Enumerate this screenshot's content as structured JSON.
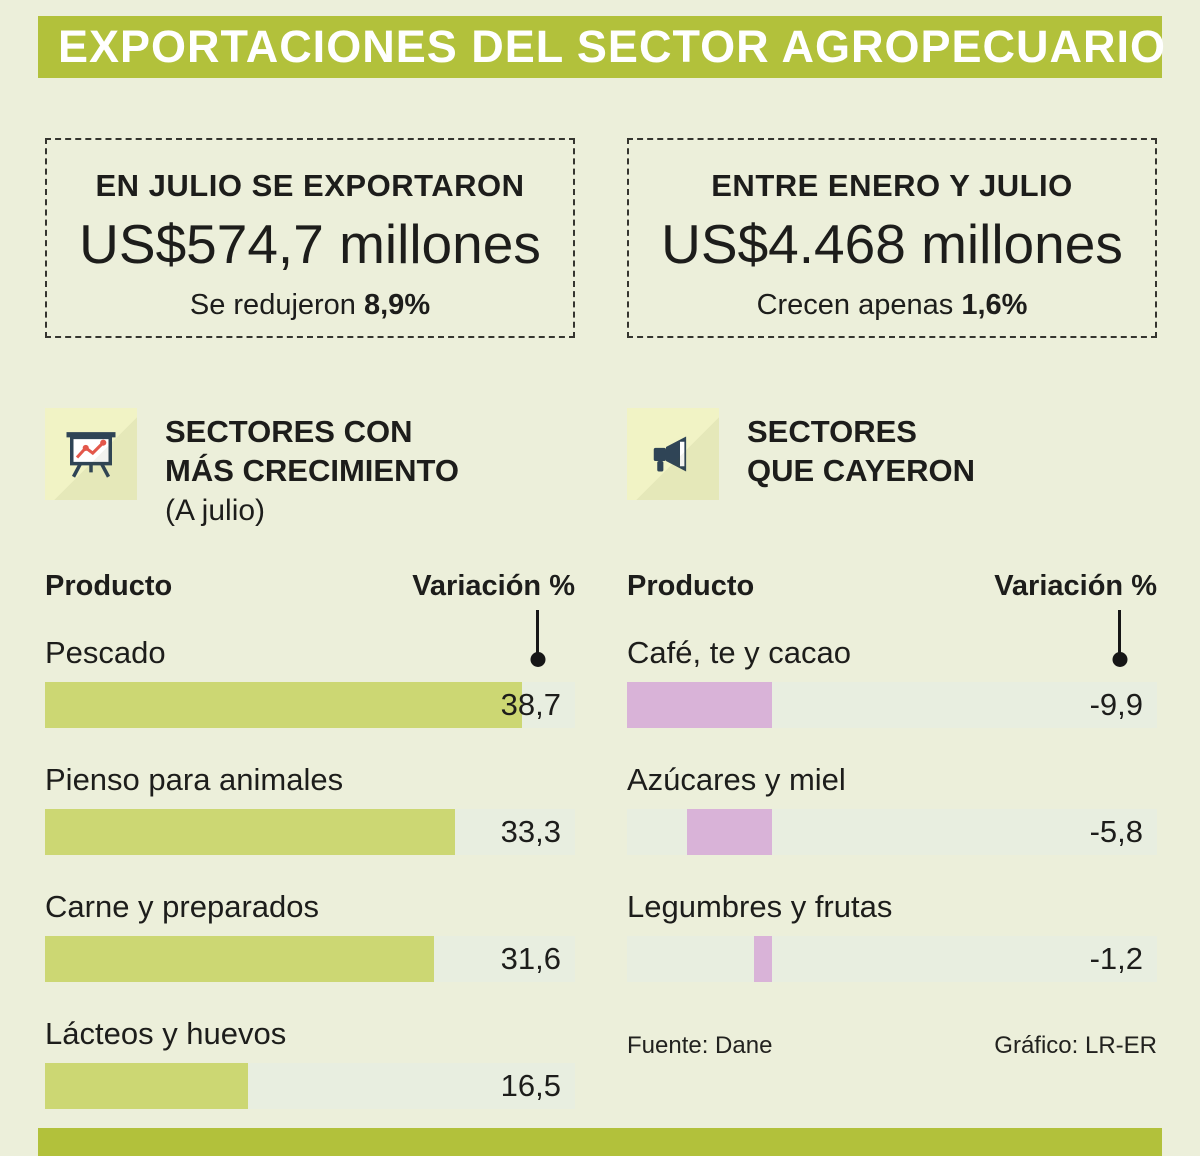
{
  "page": {
    "title": "EXPORTACIONES DEL SECTOR AGROPECUARIO",
    "source": "Fuente: Dane",
    "credit": "Gráfico: LR-ER"
  },
  "colors": {
    "banner": "#b2c13b",
    "page_bg": "#ecefda",
    "track": "#e8eee0",
    "icon_bg": "#f1f3c5",
    "growth_bar": "#ccd773",
    "decline_bar": "#d9b3d8"
  },
  "summary_boxes": [
    {
      "heading": "EN JULIO SE EXPORTARON",
      "amount": "US$574,7 millones",
      "note_prefix": "Se redujeron ",
      "note_value": "8,9%"
    },
    {
      "heading": "ENTRE ENERO Y JULIO",
      "amount": "US$4.468 millones",
      "note_prefix": "Crecen apenas ",
      "note_value": "1,6%"
    }
  ],
  "chart_data": [
    {
      "type": "bar",
      "title": "SECTORES CON MÁS CRECIMIENTO",
      "title_lines": [
        "SECTORES CON",
        "MÁS CRECIMIENTO"
      ],
      "subtitle": "(A julio)",
      "col_product": "Producto",
      "col_variation": "Variación %",
      "categories": [
        "Pescado",
        "Pienso para animales",
        "Carne y preparados",
        "Lácteos y huevos"
      ],
      "values": [
        38.7,
        33.3,
        31.6,
        16.5
      ],
      "value_labels": [
        "38,7",
        "33,3",
        "31,6",
        "16,5"
      ],
      "xlim": [
        0,
        43
      ],
      "bar_color": "#ccd773",
      "unit": "% variación"
    },
    {
      "type": "bar",
      "title": "SECTORES QUE CAYERON",
      "title_lines": [
        "SECTORES",
        "QUE CAYERON"
      ],
      "subtitle": "",
      "col_product": "Producto",
      "col_variation": "Variación %",
      "categories": [
        "Café, te y cacao",
        "Azúcares y miel",
        "Legumbres y frutas"
      ],
      "values": [
        -9.9,
        -5.8,
        -1.2
      ],
      "value_labels": [
        "-9,9",
        "-5,8",
        "-1,2"
      ],
      "xlim": [
        -9.9,
        26.4
      ],
      "bar_color": "#d9b3d8",
      "unit": "% variación"
    }
  ]
}
